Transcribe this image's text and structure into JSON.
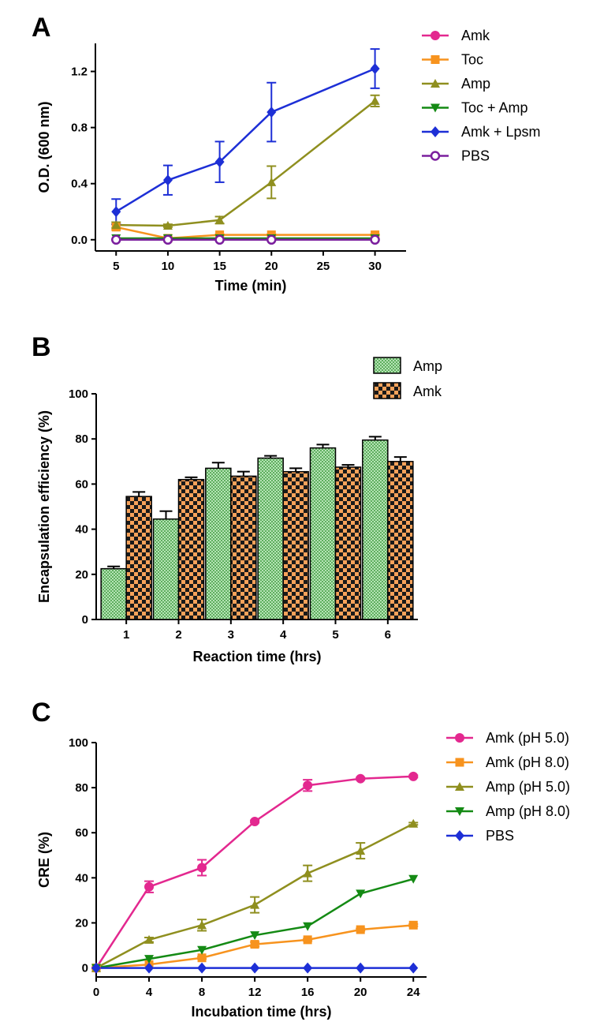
{
  "colors": {
    "magenta": "#e3288f",
    "orange": "#f7931e",
    "olive": "#8f8f1f",
    "green": "#148a14",
    "blue": "#1d2fd6",
    "purple": "#7b1f9e",
    "bar_green": "#8fd48f",
    "bar_orange": "#f59a4f"
  },
  "chart_data": [
    {
      "panel": "A",
      "type": "line",
      "xlabel": "Time (min)",
      "ylabel": "O.D. (600 nm)",
      "xlim": [
        3,
        33
      ],
      "ylim": [
        -0.08,
        1.4
      ],
      "xticks": [
        5,
        10,
        15,
        20,
        25,
        30
      ],
      "yticks": [
        0.0,
        0.4,
        0.8,
        1.2
      ],
      "ytick_labels": [
        "0.0",
        "0.4",
        "0.8",
        "1.2"
      ],
      "legend_position": "right",
      "x": [
        5,
        10,
        15,
        20,
        30
      ],
      "series": [
        {
          "name": "Amk",
          "color": "magenta",
          "marker": "circle",
          "values": [
            0.0,
            0.0,
            0.0,
            0.0,
            0.0
          ],
          "errors": [
            0,
            0,
            0,
            0,
            0
          ]
        },
        {
          "name": "Toc",
          "color": "orange",
          "marker": "square",
          "values": [
            0.09,
            0.01,
            0.035,
            0.035,
            0.035
          ],
          "errors": [
            0.02,
            0.01,
            0.005,
            0.005,
            0.005
          ]
        },
        {
          "name": "Amp",
          "color": "olive",
          "marker": "triangle-up",
          "values": [
            0.105,
            0.1,
            0.14,
            0.41,
            0.99
          ],
          "errors": [
            0.02,
            0.01,
            0.025,
            0.115,
            0.04
          ]
        },
        {
          "name": "Toc + Amp",
          "color": "green",
          "marker": "triangle-down",
          "values": [
            0.01,
            0.01,
            0.01,
            0.01,
            0.01
          ],
          "errors": [
            0,
            0,
            0,
            0,
            0
          ]
        },
        {
          "name": "Amk + Lpsm",
          "color": "blue",
          "marker": "diamond",
          "values": [
            0.2,
            0.425,
            0.555,
            0.91,
            1.22
          ],
          "errors": [
            0.09,
            0.105,
            0.145,
            0.21,
            0.14
          ]
        },
        {
          "name": "PBS",
          "color": "purple",
          "marker": "open-circle",
          "values": [
            0.0,
            0.0,
            0.0,
            0.0,
            0.0
          ],
          "errors": [
            0,
            0,
            0,
            0,
            0
          ]
        }
      ]
    },
    {
      "panel": "B",
      "type": "bar",
      "xlabel": "Reaction time (hrs)",
      "ylabel": "Encapsulation efficiency (%)",
      "ylim": [
        0,
        100
      ],
      "yticks": [
        0,
        20,
        40,
        60,
        80,
        100
      ],
      "categories": [
        "1",
        "2",
        "3",
        "4",
        "5",
        "6"
      ],
      "legend_position": "top-right",
      "series": [
        {
          "name": "Amp",
          "color": "bar_green",
          "values": [
            22.5,
            44.5,
            67,
            71.5,
            76,
            79.5
          ],
          "errors": [
            1,
            3.5,
            2.5,
            1,
            1.5,
            1.5
          ]
        },
        {
          "name": "Amk",
          "color": "bar_orange",
          "values": [
            54.5,
            62,
            63.5,
            65.5,
            67.5,
            70
          ],
          "errors": [
            2,
            1,
            2,
            1.5,
            1,
            2
          ]
        }
      ]
    },
    {
      "panel": "C",
      "type": "line",
      "xlabel": "Incubation time (hrs)",
      "ylabel": "CRE (%)",
      "xlim": [
        0,
        25
      ],
      "ylim": [
        -4,
        100
      ],
      "xticks": [
        0,
        4,
        8,
        12,
        16,
        20,
        24
      ],
      "yticks": [
        0,
        20,
        40,
        60,
        80,
        100
      ],
      "legend_position": "right",
      "x": [
        0,
        4,
        8,
        12,
        16,
        20,
        24
      ],
      "series": [
        {
          "name": "Amk (pH 5.0)",
          "color": "magenta",
          "marker": "circle",
          "values": [
            0,
            36,
            44.5,
            65,
            81,
            84,
            85
          ],
          "errors": [
            0,
            2.5,
            3.5,
            0.5,
            2.5,
            0.5,
            0.5
          ]
        },
        {
          "name": "Amk (pH 8.0)",
          "color": "orange",
          "marker": "square",
          "values": [
            0,
            1.5,
            4.5,
            10.5,
            12.5,
            17,
            19
          ],
          "errors": [
            0,
            0,
            0.5,
            1,
            0.5,
            0.5,
            0.5
          ]
        },
        {
          "name": "Amp (pH 5.0)",
          "color": "olive",
          "marker": "triangle-up",
          "values": [
            0,
            12.5,
            19,
            28,
            42,
            52,
            64
          ],
          "errors": [
            0,
            1,
            2.5,
            3.5,
            3.5,
            3.5,
            0.5
          ]
        },
        {
          "name": "Amp (pH 8.0)",
          "color": "green",
          "marker": "triangle-down",
          "values": [
            0,
            4,
            8,
            14.5,
            18.5,
            33,
            39.5
          ],
          "errors": [
            0,
            0,
            0,
            0,
            0,
            0,
            0
          ]
        },
        {
          "name": "PBS",
          "color": "blue",
          "marker": "diamond",
          "values": [
            0,
            0,
            0,
            0,
            0,
            0,
            0
          ],
          "errors": [
            0,
            0,
            0,
            0,
            0,
            0,
            0
          ]
        }
      ]
    }
  ]
}
